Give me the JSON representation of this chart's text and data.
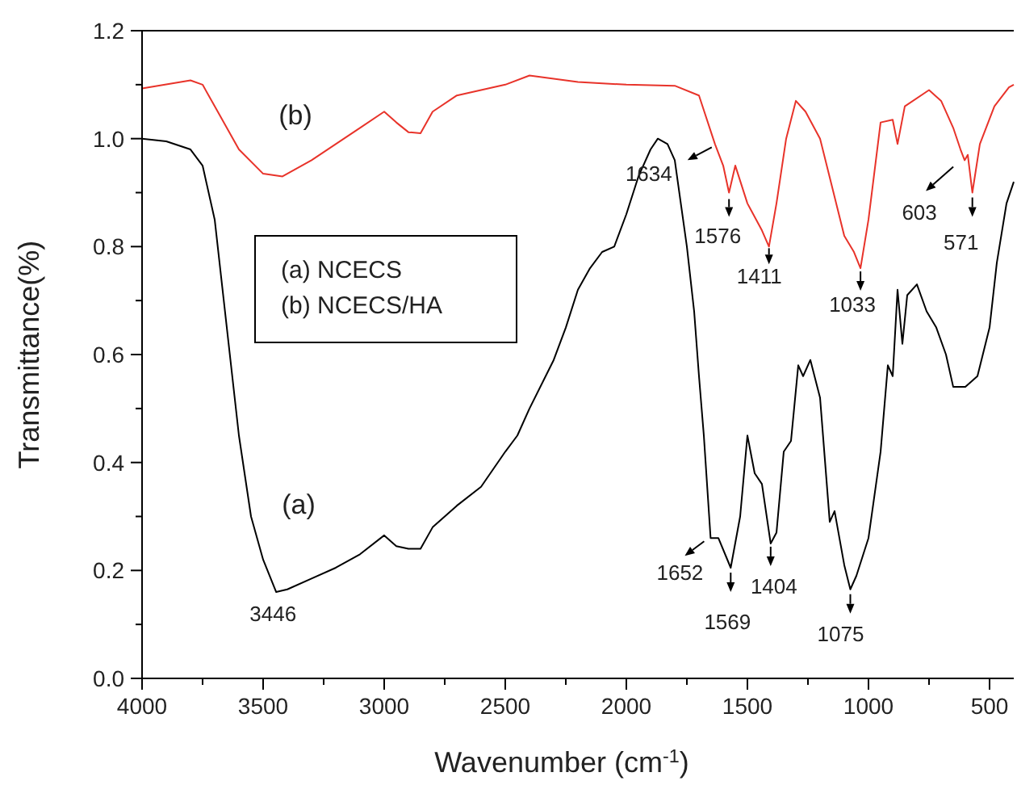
{
  "chart_data": {
    "type": "line",
    "xlabel": "Wavenumber (cm$^{-1}$)",
    "ylabel": "Transmittance(%)",
    "xlim": [
      4000,
      400
    ],
    "ylim": [
      0,
      1.2
    ],
    "xticks": [
      4000,
      {
        "value": 3750,
        "label": null
      },
      3500,
      {
        "value": 3250,
        "label": null
      },
      3000,
      {
        "value": 2750,
        "label": null
      },
      2500,
      {
        "value": 2250,
        "label": null
      },
      2000,
      {
        "value": 1750,
        "label": null
      },
      1500,
      {
        "value": 1250,
        "label": null
      },
      1000,
      {
        "value": 750,
        "label": null
      },
      500
    ],
    "yticks": [
      {
        "value": 0,
        "label": "0.0"
      },
      {
        "value": 0.1,
        "label": null
      },
      {
        "value": 0.2,
        "label": "0.2"
      },
      {
        "value": 0.3,
        "label": null
      },
      {
        "value": 0.4,
        "label": "0.4"
      },
      {
        "value": 0.5,
        "label": null
      },
      {
        "value": 0.6,
        "label": "0.6"
      },
      {
        "value": 0.7,
        "label": null
      },
      {
        "value": 0.8,
        "label": "0.8"
      },
      {
        "value": 0.9,
        "label": null
      },
      {
        "value": 1.0,
        "label": "1.0"
      },
      {
        "value": 1.1,
        "label": null
      },
      {
        "value": 1.2,
        "label": "1.2"
      }
    ],
    "grid": false,
    "marker": "none",
    "line_style": "solid",
    "series": [
      {
        "name": "(a)",
        "color": "#000000",
        "x": [
          4000,
          3900,
          3800,
          3750,
          3700,
          3650,
          3600,
          3550,
          3500,
          3446,
          3400,
          3300,
          3200,
          3100,
          3000,
          2950,
          2900,
          2850,
          2800,
          2700,
          2600,
          2500,
          2450,
          2400,
          2300,
          2250,
          2200,
          2150,
          2100,
          2050,
          2000,
          1950,
          1900,
          1870,
          1830,
          1800,
          1750,
          1720,
          1700,
          1680,
          1652,
          1620,
          1569,
          1530,
          1500,
          1470,
          1440,
          1404,
          1380,
          1350,
          1320,
          1290,
          1270,
          1240,
          1200,
          1160,
          1140,
          1100,
          1075,
          1050,
          1000,
          950,
          920,
          900,
          880,
          860,
          840,
          800,
          760,
          720,
          680,
          650,
          600,
          550,
          500,
          470,
          430,
          400
        ],
        "values": [
          1.0,
          0.995,
          0.98,
          0.95,
          0.85,
          0.65,
          0.45,
          0.3,
          0.22,
          0.16,
          0.165,
          0.185,
          0.205,
          0.23,
          0.265,
          0.245,
          0.24,
          0.24,
          0.28,
          0.32,
          0.355,
          0.42,
          0.45,
          0.5,
          0.59,
          0.65,
          0.72,
          0.76,
          0.79,
          0.8,
          0.86,
          0.93,
          0.98,
          1.0,
          0.99,
          0.96,
          0.8,
          0.68,
          0.56,
          0.45,
          0.26,
          0.26,
          0.205,
          0.3,
          0.45,
          0.38,
          0.36,
          0.25,
          0.27,
          0.42,
          0.44,
          0.58,
          0.56,
          0.59,
          0.52,
          0.29,
          0.31,
          0.21,
          0.165,
          0.19,
          0.26,
          0.42,
          0.58,
          0.56,
          0.72,
          0.62,
          0.71,
          0.73,
          0.68,
          0.65,
          0.6,
          0.54,
          0.54,
          0.56,
          0.65,
          0.77,
          0.88,
          0.92
        ]
      },
      {
        "name": "(b)",
        "color": "#e8332a",
        "x": [
          4000,
          3800,
          3750,
          3700,
          3600,
          3500,
          3420,
          3300,
          3100,
          3000,
          2950,
          2900,
          2850,
          2800,
          2700,
          2500,
          2400,
          2200,
          2000,
          1800,
          1700,
          1634,
          1600,
          1576,
          1550,
          1500,
          1440,
          1411,
          1380,
          1340,
          1300,
          1260,
          1200,
          1150,
          1100,
          1060,
          1033,
          1000,
          950,
          900,
          880,
          850,
          750,
          700,
          650,
          620,
          603,
          590,
          571,
          540,
          480,
          420,
          400
        ],
        "values": [
          1.093,
          1.108,
          1.1,
          1.06,
          0.98,
          0.935,
          0.93,
          0.96,
          1.02,
          1.05,
          1.03,
          1.012,
          1.01,
          1.05,
          1.08,
          1.1,
          1.117,
          1.105,
          1.1,
          1.098,
          1.08,
          0.99,
          0.95,
          0.9,
          0.95,
          0.88,
          0.83,
          0.8,
          0.88,
          1.0,
          1.07,
          1.05,
          1.0,
          0.91,
          0.82,
          0.79,
          0.76,
          0.85,
          1.03,
          1.035,
          0.99,
          1.06,
          1.09,
          1.07,
          1.02,
          0.98,
          0.96,
          0.97,
          0.9,
          0.99,
          1.06,
          1.095,
          1.1
        ]
      }
    ],
    "annotations": [
      "(a) NCECS",
      "(b) NCECS/HA",
      {
        "text": "3446",
        "x": 3446,
        "y": 0.16
      },
      {
        "text": "1652",
        "x": 1652,
        "y": 0.26
      },
      {
        "text": "1569",
        "x": 1569,
        "y": 0.205
      },
      {
        "text": "1404",
        "x": 1404,
        "y": 0.25
      },
      {
        "text": "1075",
        "x": 1075,
        "y": 0.165
      },
      {
        "text": "1634",
        "x": 1634,
        "y": 0.99
      },
      {
        "text": "1576",
        "x": 1576,
        "y": 0.9
      },
      {
        "text": "1411",
        "x": 1411,
        "y": 0.8
      },
      {
        "text": "1033",
        "x": 1033,
        "y": 0.76
      },
      {
        "text": "603",
        "x": 603,
        "y": 0.96
      },
      {
        "text": "571",
        "x": 571,
        "y": 0.9
      }
    ]
  }
}
